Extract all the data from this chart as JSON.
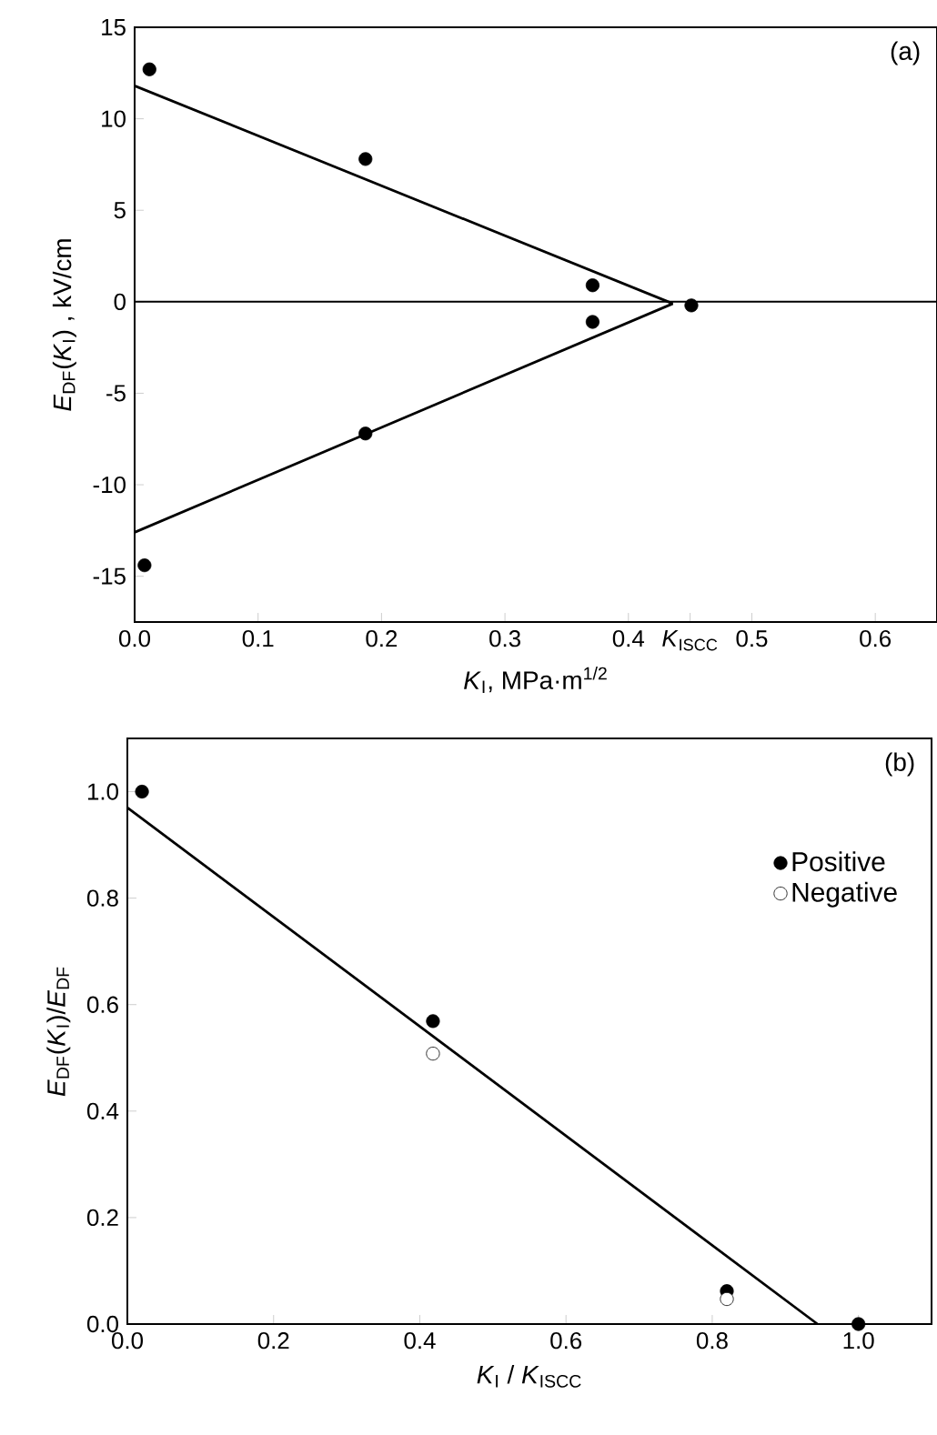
{
  "chart_data": [
    {
      "type": "scatter",
      "xlabel": "*K*$_{I}$, MPa·m$^{1/2}$",
      "ylabel": "*E*$_{DF}$(*K*$_{I}$) , kV/cm",
      "xlim": [
        0,
        0.65
      ],
      "ylim": [
        -17.5,
        15
      ],
      "xticks": [
        {
          "value": 0,
          "label": "0.0"
        },
        0.1,
        0.2,
        0.3,
        0.4,
        {
          "value": 0.45,
          "label": "*K*$_{ISCC}$"
        },
        0.5,
        0.6
      ],
      "yticks": [
        -15,
        -10,
        -5,
        0,
        5,
        10,
        15
      ],
      "grid": false,
      "legend": false,
      "ref_lines": [
        {
          "axis": "y",
          "value": 0,
          "color": "#000000",
          "line_style": "solid"
        }
      ],
      "annotations": [
        "(a)"
      ],
      "series": [
        {
          "marker": "circle",
          "color": "#000000",
          "x": [
            0.012,
            0.187,
            0.371,
            0.371,
            0.451,
            0.187,
            0.008
          ],
          "values": [
            12.7,
            7.8,
            0.9,
            -1.1,
            -0.2,
            -7.2,
            -14.4
          ]
        },
        {
          "type": "line",
          "color": "#000000",
          "x": [
            0,
            0.436
          ],
          "values": [
            11.8,
            -0.1
          ]
        },
        {
          "type": "line",
          "color": "#000000",
          "x": [
            0,
            0.436
          ],
          "values": [
            -12.6,
            -0.1
          ]
        }
      ]
    },
    {
      "type": "scatter",
      "xlabel": "*K*$_{I}$ / *K*$_{ISCC}$",
      "ylabel": "*E*$_{DF}$(*K*$_{I}$)/*E*$_{DF}$",
      "xlim": [
        0,
        1.1
      ],
      "ylim": [
        0,
        1.1
      ],
      "xticks": [
        {
          "value": 0,
          "label": "0.0"
        },
        0.2,
        0.4,
        0.6,
        0.8,
        {
          "value": 1,
          "label": "1.0"
        }
      ],
      "yticks": [
        {
          "value": 0,
          "label": "0.0"
        },
        0.2,
        0.4,
        0.6,
        0.8,
        {
          "value": 1,
          "label": "1.0"
        }
      ],
      "grid": false,
      "legend": "top right",
      "annotations": [
        "(b)"
      ],
      "series": [
        {
          "name": "Positive",
          "marker": "circle",
          "color": "#000000",
          "x": [
            0.02,
            0.418,
            0.82,
            1.0
          ],
          "values": [
            1.0,
            0.569,
            0.062,
            0.0
          ]
        },
        {
          "name": "Negative",
          "marker": "circle",
          "color": "#ffffff",
          "x": [
            0.418,
            0.82
          ],
          "values": [
            0.508,
            0.047
          ]
        },
        {
          "type": "line",
          "color": "#000000",
          "x": [
            0,
            0.944
          ],
          "values": [
            0.97,
            0
          ]
        }
      ]
    }
  ]
}
